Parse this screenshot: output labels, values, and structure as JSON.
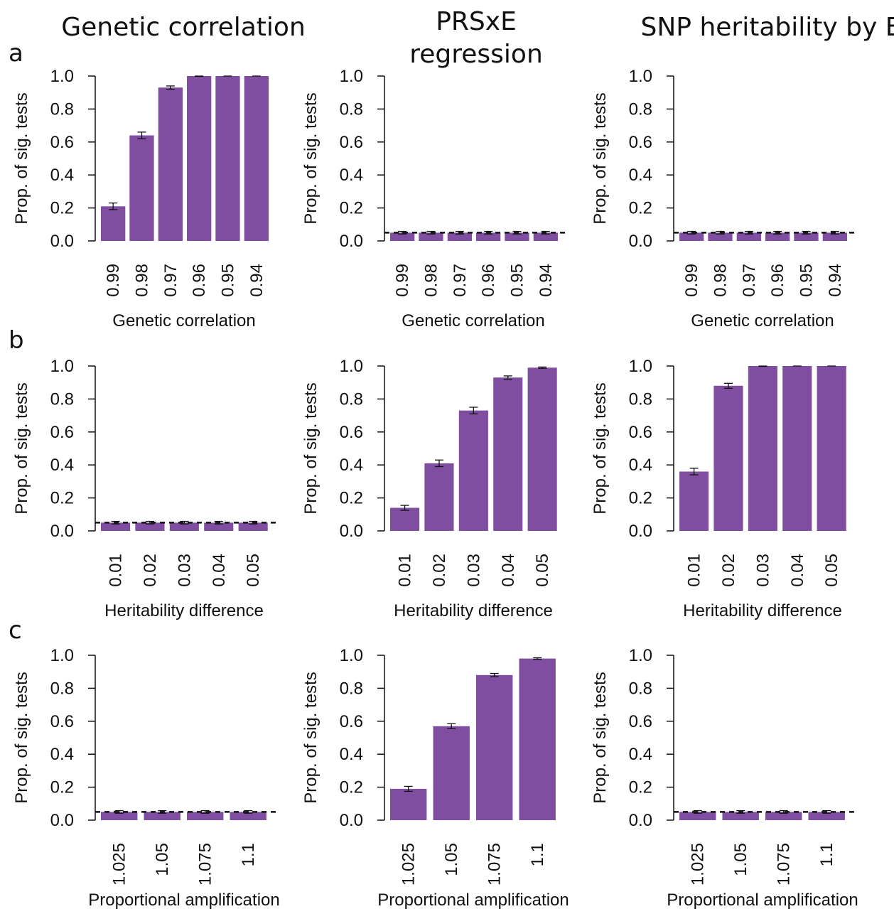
{
  "column_titles": [
    {
      "lines": [
        "Genetic correlation"
      ]
    },
    {
      "lines": [
        "PRSxE",
        "regression"
      ]
    },
    {
      "lines": [
        "SNP heritability by E"
      ]
    }
  ],
  "row_labels": [
    "a",
    "b",
    "c"
  ],
  "colors": {
    "bar": "#7f4ea1",
    "axis": "#111111",
    "threshold": "#111111"
  },
  "chart_data": [
    {
      "id": "a-genetic-correlation",
      "type": "bar",
      "title": "Genetic correlation",
      "categories": [
        "0.99",
        "0.98",
        "0.97",
        "0.96",
        "0.95",
        "0.94"
      ],
      "values": [
        0.21,
        0.64,
        0.93,
        1.0,
        1.0,
        1.0
      ],
      "errors": [
        0.02,
        0.02,
        0.01,
        0.002,
        0,
        0
      ],
      "xlabel": "Genetic correlation",
      "ylabel": "Prop. of sig. tests",
      "ylim": [
        0,
        1
      ],
      "yticks": [
        "0.0",
        "0.2",
        "0.4",
        "0.6",
        "0.8",
        "1.0"
      ],
      "threshold": null,
      "legend": null,
      "grid": false
    },
    {
      "id": "a-prsxe",
      "type": "bar",
      "title": "PRSxE regression",
      "categories": [
        "0.99",
        "0.98",
        "0.97",
        "0.96",
        "0.95",
        "0.94"
      ],
      "values": [
        0.05,
        0.05,
        0.05,
        0.05,
        0.05,
        0.05
      ],
      "errors": [
        0.008,
        0.008,
        0.008,
        0.008,
        0.008,
        0.008
      ],
      "xlabel": "Genetic correlation",
      "ylabel": "Prop. of sig. tests",
      "ylim": [
        0,
        1
      ],
      "yticks": [
        "0.0",
        "0.2",
        "0.4",
        "0.6",
        "0.8",
        "1.0"
      ],
      "threshold": 0.05,
      "legend": null,
      "grid": false
    },
    {
      "id": "a-snp-heritability",
      "type": "bar",
      "title": "SNP heritability by E",
      "categories": [
        "0.99",
        "0.98",
        "0.97",
        "0.96",
        "0.95",
        "0.94"
      ],
      "values": [
        0.05,
        0.05,
        0.05,
        0.05,
        0.05,
        0.05
      ],
      "errors": [
        0.008,
        0.008,
        0.008,
        0.008,
        0.008,
        0.008
      ],
      "xlabel": "Genetic correlation",
      "ylabel": "Prop. of sig. tests",
      "ylim": [
        0,
        1
      ],
      "yticks": [
        "0.0",
        "0.2",
        "0.4",
        "0.6",
        "0.8",
        "1.0"
      ],
      "threshold": 0.05,
      "legend": null,
      "grid": false
    },
    {
      "id": "b-genetic-correlation",
      "type": "bar",
      "title": "Genetic correlation",
      "categories": [
        "0.01",
        "0.02",
        "0.03",
        "0.04",
        "0.05"
      ],
      "values": [
        0.05,
        0.05,
        0.05,
        0.05,
        0.05
      ],
      "errors": [
        0.008,
        0.008,
        0.008,
        0.008,
        0.008
      ],
      "xlabel": "Heritability difference",
      "ylabel": "Prop. of sig. tests",
      "ylim": [
        0,
        1
      ],
      "yticks": [
        "0.0",
        "0.2",
        "0.4",
        "0.6",
        "0.8",
        "1.0"
      ],
      "threshold": 0.05,
      "legend": null,
      "grid": false
    },
    {
      "id": "b-prsxe",
      "type": "bar",
      "title": "PRSxE regression",
      "categories": [
        "0.01",
        "0.02",
        "0.03",
        "0.04",
        "0.05"
      ],
      "values": [
        0.14,
        0.41,
        0.73,
        0.93,
        0.99
      ],
      "errors": [
        0.015,
        0.02,
        0.02,
        0.01,
        0.004
      ],
      "xlabel": "Heritability difference",
      "ylabel": "Prop. of sig. tests",
      "ylim": [
        0,
        1
      ],
      "yticks": [
        "0.0",
        "0.2",
        "0.4",
        "0.6",
        "0.8",
        "1.0"
      ],
      "threshold": null,
      "legend": null,
      "grid": false
    },
    {
      "id": "b-snp-heritability",
      "type": "bar",
      "title": "SNP heritability by E",
      "categories": [
        "0.01",
        "0.02",
        "0.03",
        "0.04",
        "0.05"
      ],
      "values": [
        0.36,
        0.88,
        1.0,
        1.0,
        1.0
      ],
      "errors": [
        0.02,
        0.015,
        0.002,
        0,
        0
      ],
      "xlabel": "Heritability difference",
      "ylabel": "Prop. of sig. tests",
      "ylim": [
        0,
        1
      ],
      "yticks": [
        "0.0",
        "0.2",
        "0.4",
        "0.6",
        "0.8",
        "1.0"
      ],
      "threshold": null,
      "legend": null,
      "grid": false
    },
    {
      "id": "c-genetic-correlation",
      "type": "bar",
      "title": "Genetic correlation",
      "categories": [
        "1.025",
        "1.05",
        "1.075",
        "1.1"
      ],
      "values": [
        0.05,
        0.05,
        0.05,
        0.05
      ],
      "errors": [
        0.008,
        0.008,
        0.008,
        0.008
      ],
      "xlabel": "Proportional amplification",
      "ylabel": "Prop. of sig. tests",
      "ylim": [
        0,
        1
      ],
      "yticks": [
        "0.0",
        "0.2",
        "0.4",
        "0.6",
        "0.8",
        "1.0"
      ],
      "threshold": 0.05,
      "legend": null,
      "grid": false
    },
    {
      "id": "c-prsxe",
      "type": "bar",
      "title": "PRSxE regression",
      "categories": [
        "1.025",
        "1.05",
        "1.075",
        "1.1"
      ],
      "values": [
        0.19,
        0.57,
        0.88,
        0.98
      ],
      "errors": [
        0.015,
        0.015,
        0.01,
        0.005
      ],
      "xlabel": "Proportional amplification",
      "ylabel": "Prop. of sig. tests",
      "ylim": [
        0,
        1
      ],
      "yticks": [
        "0.0",
        "0.2",
        "0.4",
        "0.6",
        "0.8",
        "1.0"
      ],
      "threshold": null,
      "legend": null,
      "grid": false
    },
    {
      "id": "c-snp-heritability",
      "type": "bar",
      "title": "SNP heritability by E",
      "categories": [
        "1.025",
        "1.05",
        "1.075",
        "1.1"
      ],
      "values": [
        0.05,
        0.05,
        0.05,
        0.05
      ],
      "errors": [
        0.008,
        0.008,
        0.008,
        0.008
      ],
      "xlabel": "Proportional amplification",
      "ylabel": "Prop. of sig. tests",
      "ylim": [
        0,
        1
      ],
      "yticks": [
        "0.0",
        "0.2",
        "0.4",
        "0.6",
        "0.8",
        "1.0"
      ],
      "threshold": 0.05,
      "legend": null,
      "grid": false
    }
  ]
}
